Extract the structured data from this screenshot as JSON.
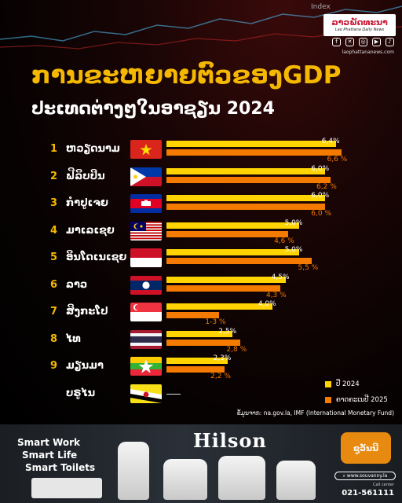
{
  "header": {
    "ticker_label": "Index",
    "logo_title": "ລາວພັດທະນາ",
    "logo_subtitle": "Lao Phattana Daily News",
    "social_icons": [
      "facebook-icon",
      "x-icon",
      "instagram-icon",
      "youtube-icon",
      "tiktok-icon"
    ],
    "website": "laophattananews.com"
  },
  "colors": {
    "accent": "#f5b800",
    "series_2024": "#ffd400",
    "series_2025": "#f47a00"
  },
  "chart_data": {
    "type": "bar",
    "orientation": "horizontal",
    "title": "ການຂະຫຍາຍຕົວຂອງGDP",
    "subtitle": "ປະເທດຕ່າງໆໃນອາຊຽນ 2024",
    "xlim": [
      0,
      7
    ],
    "grid": false,
    "legend_placement": "bottom-right",
    "categories": [
      {
        "rank": "1",
        "name": "ຫວຽດນາມ",
        "flag": "vietnam-flag"
      },
      {
        "rank": "2",
        "name": "ຟີລິບປິນ",
        "flag": "philippines-flag"
      },
      {
        "rank": "3",
        "name": "ກຳປູເຈຍ",
        "flag": "cambodia-flag"
      },
      {
        "rank": "4",
        "name": "ມາເລເຊຍ",
        "flag": "malaysia-flag"
      },
      {
        "rank": "5",
        "name": "ອິນໂດເນເຊຍ",
        "flag": "indonesia-flag"
      },
      {
        "rank": "6",
        "name": "ລາວ",
        "flag": "laos-flag"
      },
      {
        "rank": "7",
        "name": "ສິງກະໂປ",
        "flag": "singapore-flag"
      },
      {
        "rank": "8",
        "name": "ໄທ",
        "flag": "thailand-flag"
      },
      {
        "rank": "9",
        "name": "ມຽນມາ",
        "flag": "myanmar-flag"
      },
      {
        "rank": "",
        "name": "ບຣູໄນ",
        "flag": "brunei-flag"
      }
    ],
    "series": [
      {
        "name": "ປີ 2024",
        "values": [
          6.4,
          6.0,
          6.0,
          5.0,
          5.0,
          4.5,
          4.0,
          2.5,
          2.3,
          null
        ],
        "labels": [
          "6,4%",
          "6,0%",
          "6,0%",
          "5,0%",
          "5,0%",
          "4,5%",
          "4,0%",
          "2,5%",
          "2,3%",
          ""
        ]
      },
      {
        "name": "ຄາດຄະເນປີ 2025",
        "values": [
          6.6,
          6.2,
          6.0,
          4.6,
          5.5,
          4.3,
          2.0,
          2.8,
          2.2,
          null
        ],
        "labels": [
          "6,6 %",
          "6,2 %",
          "6,0 %",
          "4,6 %",
          "5,5 %",
          "4,3 %",
          "1-3 %",
          "2,8 %",
          "2,2 %",
          ""
        ]
      }
    ],
    "missing_marker": "—",
    "source": "ຂໍ້ມູນຈາກ: na.gov.la, IMF (International Monetary Fund)"
  },
  "ad": {
    "lines": [
      "Smart Work",
      "Smart Life",
      "Smart Toilets"
    ],
    "brand": "Hilson",
    "dealer_logo": "ຊູວັນນີ",
    "website": "www.souvanny.la",
    "call_label": "Call center",
    "phone": "021-561111"
  }
}
